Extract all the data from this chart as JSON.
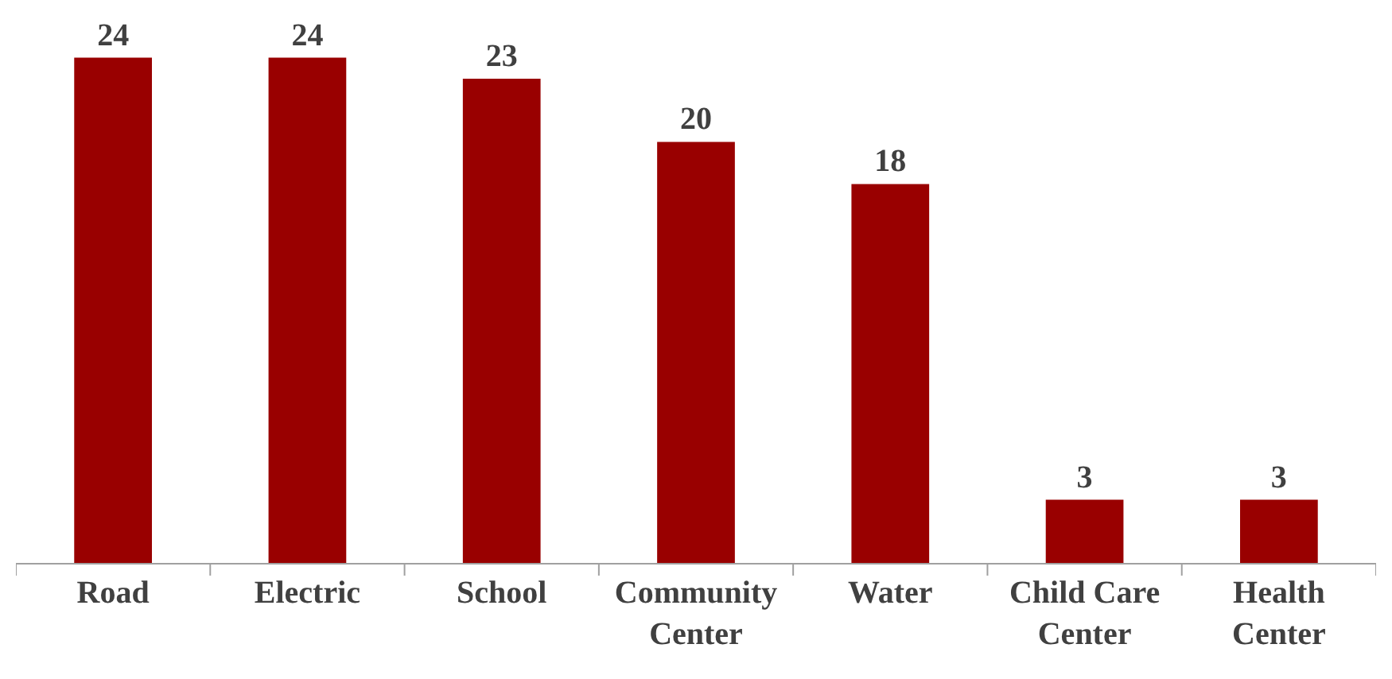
{
  "chart_data": {
    "type": "bar",
    "categories": [
      "Road",
      "Electric",
      "School",
      "Community Center",
      "Water",
      "Child Care Center",
      "Health Center"
    ],
    "values": [
      24,
      24,
      23,
      20,
      18,
      3,
      3
    ],
    "color": "#990000",
    "data_labels": true,
    "legend": false,
    "tick_labels": "x"
  }
}
